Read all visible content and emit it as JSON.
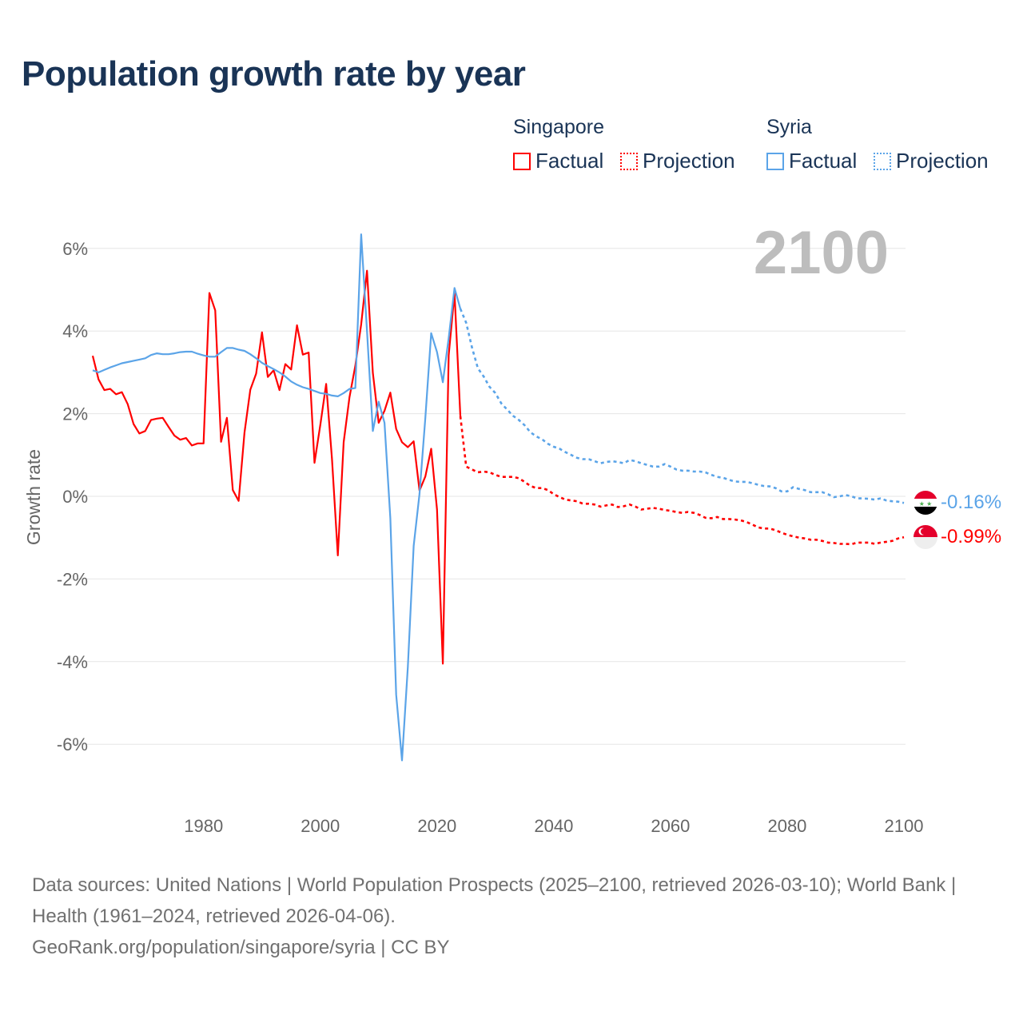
{
  "title": "Population growth rate by year",
  "legend": {
    "groups": [
      {
        "name": "Singapore",
        "color": "#ff0000",
        "factual": "Factual",
        "projection": "Projection"
      },
      {
        "name": "Syria",
        "color": "#5ba4e8",
        "factual": "Factual",
        "projection": "Projection"
      }
    ]
  },
  "year_label": "2100",
  "end_labels": {
    "syria": "-0.16%",
    "singapore": "-0.99%"
  },
  "footer": {
    "sources": "Data sources: United Nations | World Population Prospects (2025–2100, retrieved 2026-03-10); World Bank | Health (1961–2024, retrieved 2026-04-06).",
    "credit": "GeoRank.org/population/singapore/syria | CC BY"
  },
  "chart_data": {
    "type": "line",
    "title": "Population growth rate by year",
    "xlabel": "",
    "ylabel": "Growth rate",
    "xlim": [
      1961,
      2100
    ],
    "ylim": [
      -7,
      6.5
    ],
    "xticks": [
      1980,
      2000,
      2020,
      2040,
      2060,
      2080,
      2100
    ],
    "xtick_labels": [
      "1980",
      "2000",
      "2020",
      "2040",
      "2060",
      "2080",
      "2100"
    ],
    "yticks": [
      6,
      4,
      2,
      0,
      -2,
      -4,
      -6
    ],
    "ytick_labels": [
      "6%",
      "4%",
      "2%",
      "0%",
      "-2%",
      "-4%",
      "-6%"
    ],
    "grid": true,
    "legend_position": "top-right",
    "series": [
      {
        "name": "Singapore",
        "color": "#ff0000",
        "factual_start": 1961,
        "factual": [
          3.4,
          2.83,
          2.57,
          2.6,
          2.47,
          2.52,
          2.23,
          1.75,
          1.52,
          1.58,
          1.85,
          1.88,
          1.9,
          1.68,
          1.47,
          1.37,
          1.41,
          1.23,
          1.28,
          1.28,
          4.92,
          4.5,
          1.32,
          1.9,
          0.15,
          -0.11,
          1.54,
          2.58,
          2.97,
          3.97,
          2.89,
          3.05,
          2.57,
          3.2,
          3.07,
          4.14,
          3.43,
          3.48,
          0.81,
          1.73,
          2.72,
          0.9,
          -1.43,
          1.31,
          2.4,
          3.16,
          4.16,
          5.46,
          2.99,
          1.78,
          2.07,
          2.51,
          1.63,
          1.31,
          1.19,
          1.33,
          0.14,
          0.48,
          1.15,
          -0.32,
          -4.05,
          3.41,
          4.92,
          1.94
        ],
        "projection_start": 2024,
        "projection": [
          1.94,
          0.72,
          0.65,
          0.58,
          0.6,
          0.58,
          0.52,
          0.47,
          0.47,
          0.47,
          0.44,
          0.35,
          0.25,
          0.2,
          0.2,
          0.15,
          0.05,
          -0.02,
          -0.08,
          -0.1,
          -0.12,
          -0.18,
          -0.18,
          -0.2,
          -0.25,
          -0.22,
          -0.2,
          -0.26,
          -0.24,
          -0.2,
          -0.25,
          -0.32,
          -0.3,
          -0.28,
          -0.3,
          -0.33,
          -0.35,
          -0.38,
          -0.4,
          -0.38,
          -0.4,
          -0.45,
          -0.52,
          -0.53,
          -0.5,
          -0.55,
          -0.55,
          -0.56,
          -0.58,
          -0.62,
          -0.68,
          -0.75,
          -0.78,
          -0.78,
          -0.82,
          -0.88,
          -0.93,
          -0.97,
          -1.0,
          -1.02,
          -1.05,
          -1.05,
          -1.08,
          -1.12,
          -1.13,
          -1.15,
          -1.15,
          -1.16,
          -1.12,
          -1.12,
          -1.12,
          -1.15,
          -1.12,
          -1.1,
          -1.08,
          -1.02,
          -0.99
        ]
      },
      {
        "name": "Syria",
        "color": "#5ba4e8",
        "factual_start": 1961,
        "factual": [
          3.05,
          3.0,
          3.06,
          3.12,
          3.17,
          3.22,
          3.25,
          3.28,
          3.31,
          3.34,
          3.42,
          3.46,
          3.44,
          3.44,
          3.46,
          3.49,
          3.5,
          3.5,
          3.45,
          3.41,
          3.38,
          3.38,
          3.49,
          3.59,
          3.59,
          3.55,
          3.52,
          3.44,
          3.34,
          3.23,
          3.15,
          3.08,
          3.0,
          2.9,
          2.78,
          2.7,
          2.64,
          2.6,
          2.55,
          2.5,
          2.48,
          2.44,
          2.42,
          2.5,
          2.6,
          2.62,
          6.34,
          4.0,
          1.58,
          2.29,
          1.78,
          -0.53,
          -4.8,
          -6.39,
          -4.13,
          -1.2,
          0.06,
          1.9,
          3.95,
          3.49,
          2.76,
          3.83,
          5.04,
          4.54
        ],
        "projection_start": 2024,
        "projection": [
          4.54,
          4.2,
          3.6,
          3.1,
          2.9,
          2.65,
          2.5,
          2.25,
          2.1,
          1.95,
          1.85,
          1.72,
          1.55,
          1.45,
          1.38,
          1.27,
          1.2,
          1.15,
          1.07,
          1.0,
          0.93,
          0.9,
          0.9,
          0.85,
          0.8,
          0.83,
          0.85,
          0.83,
          0.8,
          0.88,
          0.85,
          0.8,
          0.76,
          0.72,
          0.72,
          0.78,
          0.72,
          0.65,
          0.62,
          0.62,
          0.6,
          0.6,
          0.58,
          0.52,
          0.47,
          0.45,
          0.4,
          0.36,
          0.35,
          0.35,
          0.32,
          0.28,
          0.25,
          0.24,
          0.2,
          0.12,
          0.12,
          0.22,
          0.18,
          0.15,
          0.1,
          0.1,
          0.1,
          0.05,
          -0.02,
          0.0,
          0.03,
          0.0,
          -0.05,
          -0.05,
          -0.06,
          -0.08,
          -0.05,
          -0.1,
          -0.12,
          -0.13,
          -0.16
        ]
      }
    ]
  }
}
